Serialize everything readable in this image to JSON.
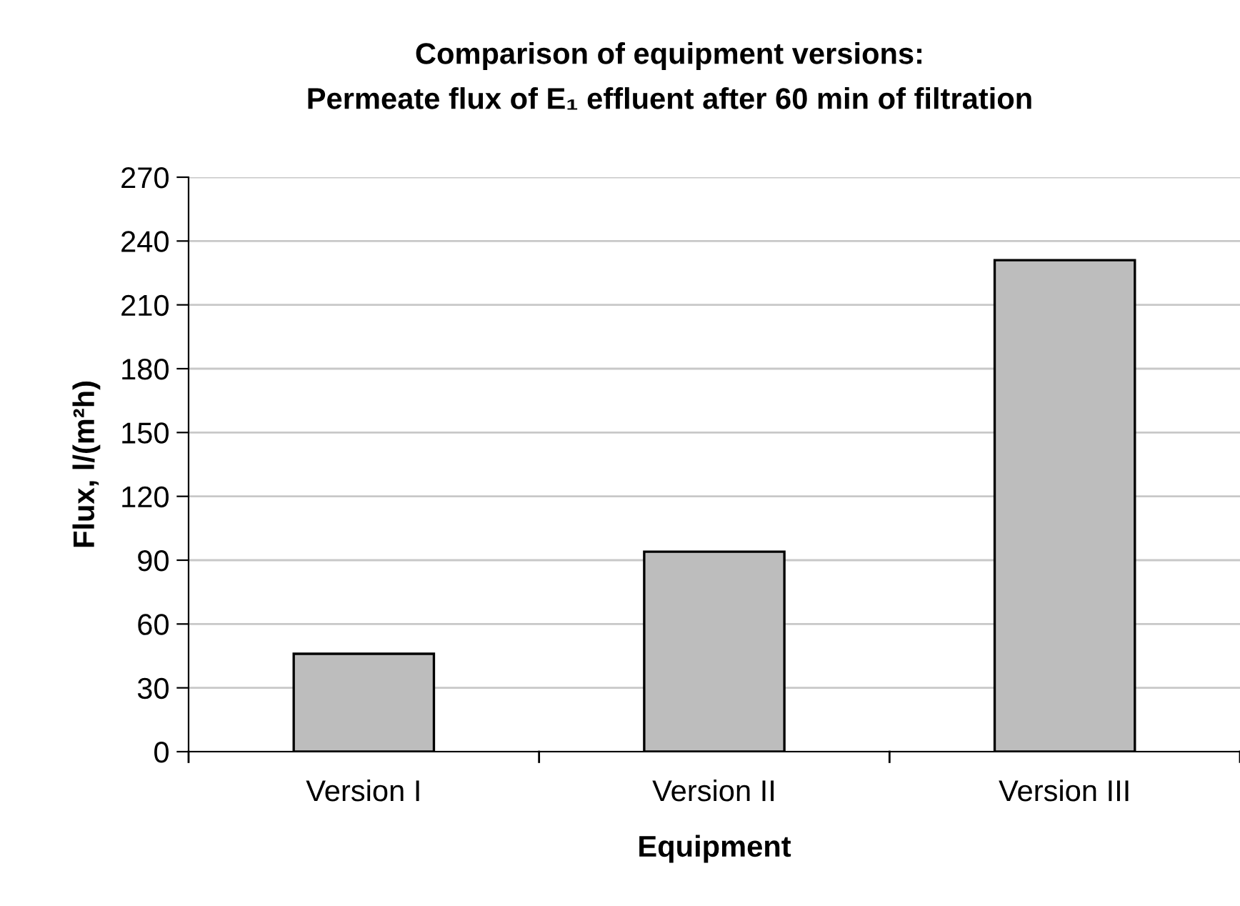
{
  "chart_data": {
    "type": "bar",
    "title": "Comparison of equipment versions:\nPermeate flux of E₁ effluent after 60 min of filtration",
    "xlabel": "Equipment",
    "ylabel": "Flux, l/(m²h)",
    "categories": [
      "Version I",
      "Version II",
      "Version III"
    ],
    "values": [
      46,
      94,
      231
    ],
    "color": "#bdbdbd",
    "ylim": [
      0,
      270
    ],
    "yticks": [
      0,
      30,
      60,
      90,
      120,
      150,
      180,
      210,
      240,
      270
    ],
    "grid": "y"
  }
}
